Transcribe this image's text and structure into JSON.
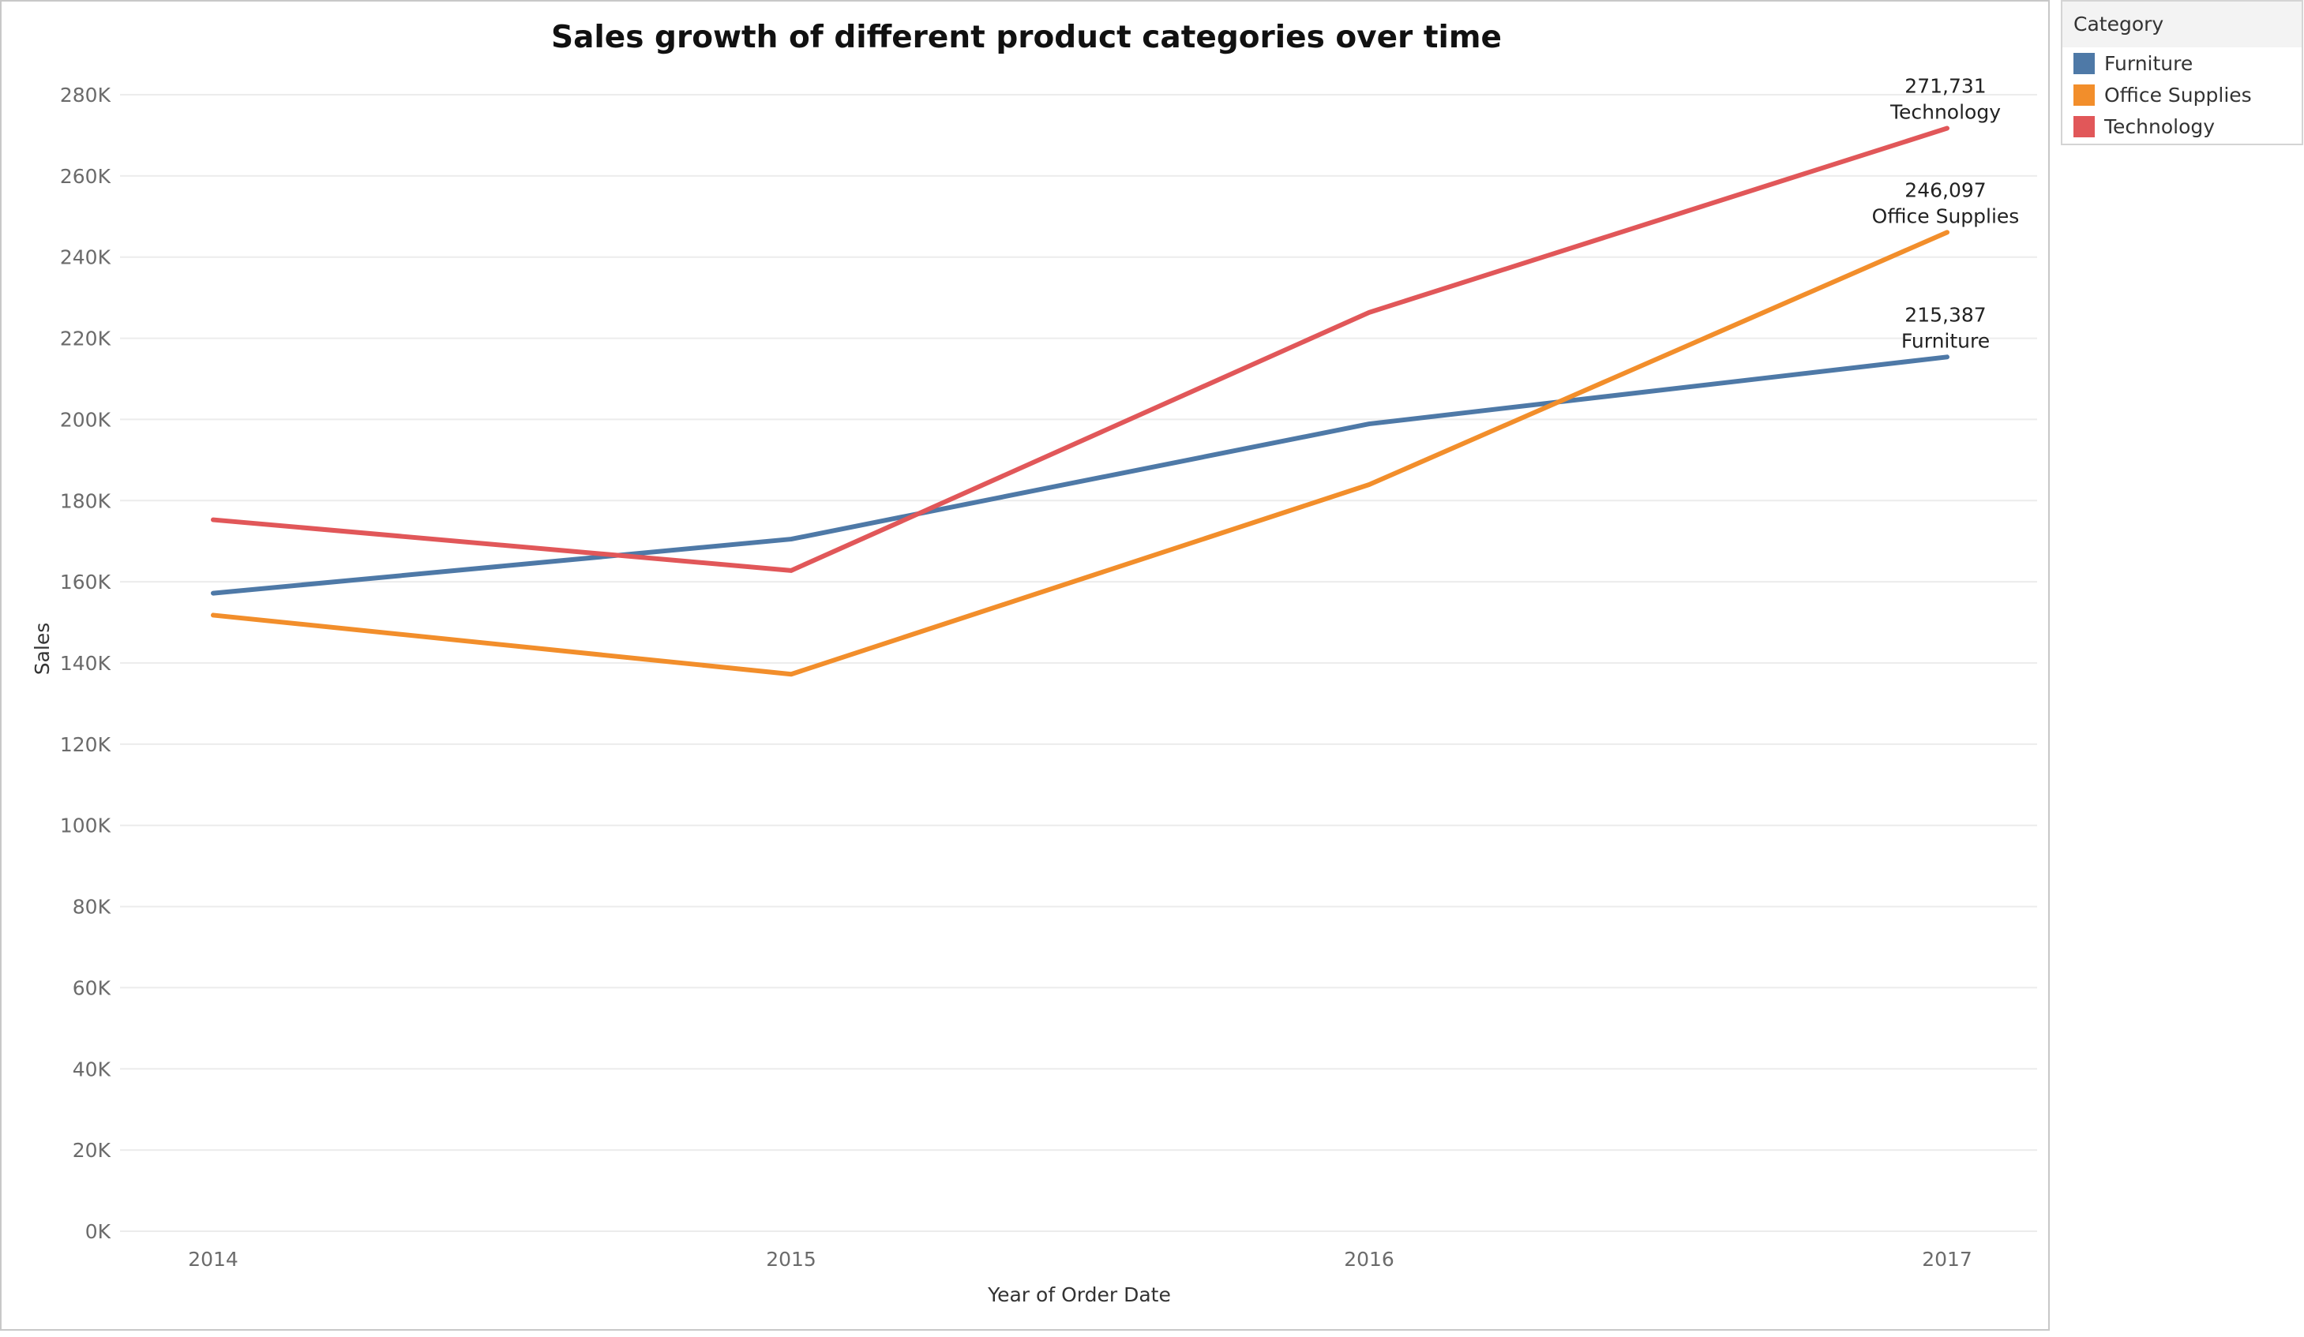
{
  "legend": {
    "title": "Category",
    "items": [
      {
        "label": "Furniture",
        "color": "#4e79a7"
      },
      {
        "label": "Office Supplies",
        "color": "#f28e2b"
      },
      {
        "label": "Technology",
        "color": "#e15759"
      }
    ]
  },
  "chart_data": {
    "type": "line",
    "title": "Sales growth of different product categories over time",
    "xlabel": "Year of Order Date",
    "ylabel": "Sales",
    "categories": [
      "2014",
      "2015",
      "2016",
      "2017"
    ],
    "ylim": [
      0,
      280000
    ],
    "y_ticks": [
      {
        "value": 0,
        "label": "0K"
      },
      {
        "value": 20000,
        "label": "20K"
      },
      {
        "value": 40000,
        "label": "40K"
      },
      {
        "value": 60000,
        "label": "60K"
      },
      {
        "value": 80000,
        "label": "80K"
      },
      {
        "value": 100000,
        "label": "100K"
      },
      {
        "value": 120000,
        "label": "120K"
      },
      {
        "value": 140000,
        "label": "140K"
      },
      {
        "value": 160000,
        "label": "160K"
      },
      {
        "value": 180000,
        "label": "180K"
      },
      {
        "value": 200000,
        "label": "200K"
      },
      {
        "value": 220000,
        "label": "220K"
      },
      {
        "value": 240000,
        "label": "240K"
      },
      {
        "value": 260000,
        "label": "260K"
      },
      {
        "value": 280000,
        "label": "280K"
      }
    ],
    "grid": true,
    "legend_position": "right",
    "series": [
      {
        "name": "Furniture",
        "color": "#4e79a7",
        "values": [
          157193,
          170518,
          198901,
          215387
        ],
        "end_label": "215,387"
      },
      {
        "name": "Office Supplies",
        "color": "#f28e2b",
        "values": [
          151776,
          137233,
          183940,
          246097
        ],
        "end_label": "246,097"
      },
      {
        "name": "Technology",
        "color": "#e15759",
        "values": [
          175278,
          162781,
          226364,
          271731
        ],
        "end_label": "271,731"
      }
    ]
  }
}
